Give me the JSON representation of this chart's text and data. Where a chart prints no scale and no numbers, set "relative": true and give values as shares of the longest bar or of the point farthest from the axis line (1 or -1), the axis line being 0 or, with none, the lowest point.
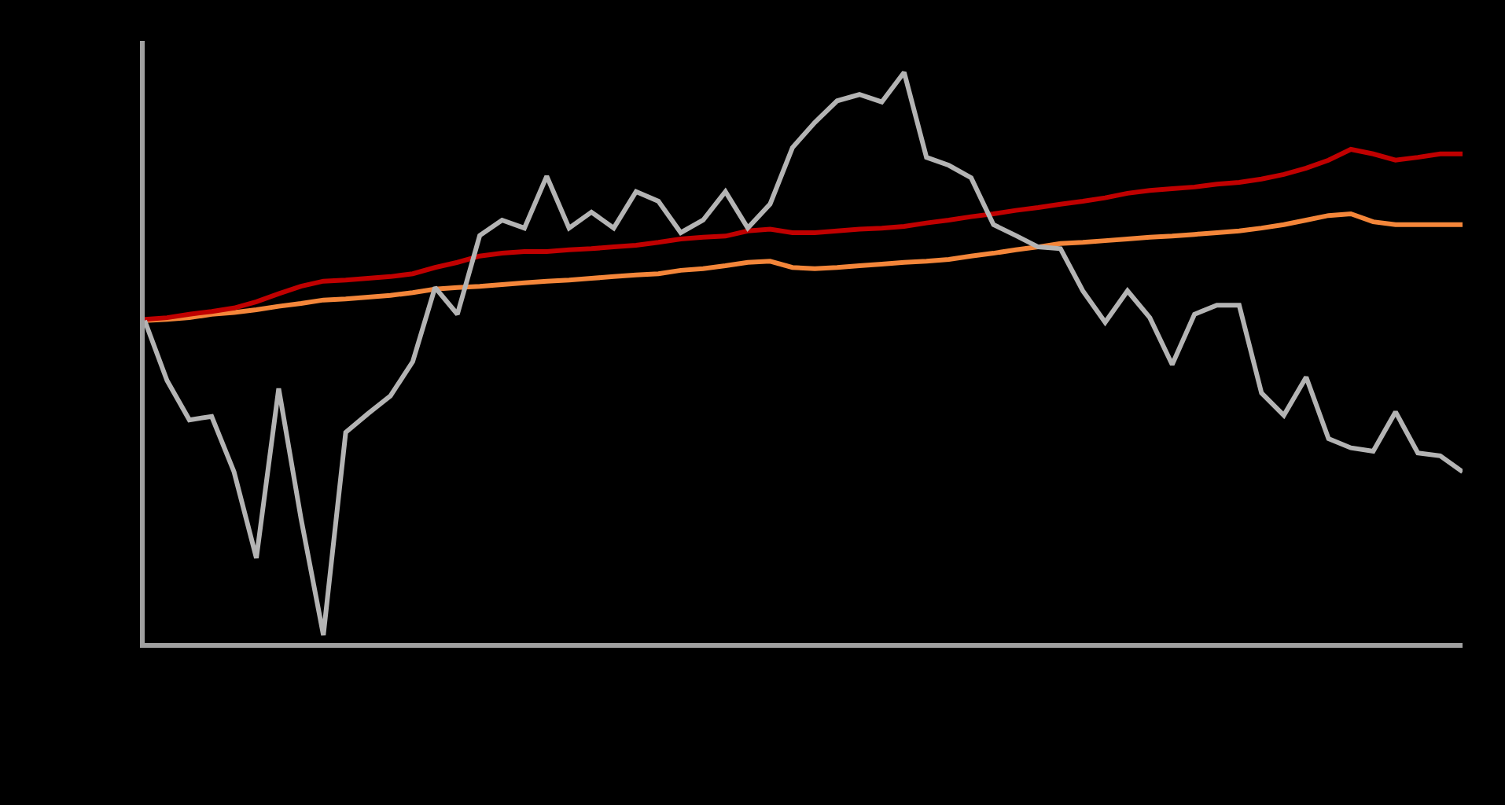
{
  "chart_data": {
    "type": "line",
    "relative": true,
    "grid": false,
    "marker": "none",
    "line_style": "solid",
    "categories": [
      null,
      null,
      null,
      null,
      null,
      null,
      null,
      null,
      null,
      null,
      null,
      null,
      null,
      null,
      null,
      null,
      null,
      null,
      null,
      null,
      null,
      null,
      null,
      null,
      null,
      null,
      null,
      null,
      null,
      null,
      null,
      null,
      null,
      null,
      null,
      null,
      null,
      null,
      null,
      null,
      null,
      null,
      null,
      null,
      null,
      null,
      null,
      null,
      null,
      null,
      null,
      null,
      null,
      null,
      null,
      null,
      null,
      null,
      null,
      null
    ],
    "series": [
      {
        "color": "#f4863a",
        "values": [
          0.565,
          0.567,
          0.57,
          0.576,
          0.579,
          0.584,
          0.59,
          0.595,
          0.601,
          0.603,
          0.606,
          0.609,
          0.614,
          0.62,
          0.623,
          0.625,
          0.628,
          0.631,
          0.634,
          0.636,
          0.639,
          0.642,
          0.645,
          0.647,
          0.653,
          0.656,
          0.661,
          0.667,
          0.669,
          0.658,
          0.656,
          0.658,
          0.661,
          0.664,
          0.667,
          0.669,
          0.672,
          0.678,
          0.683,
          0.689,
          0.694,
          0.7,
          0.702,
          0.705,
          0.708,
          0.711,
          0.713,
          0.716,
          0.719,
          0.722,
          0.727,
          0.733,
          0.741,
          0.749,
          0.752,
          0.738,
          0.733,
          0.733,
          0.733,
          0.733
        ]
      },
      {
        "color": "#c00000",
        "values": [
          0.567,
          0.57,
          0.576,
          0.581,
          0.587,
          0.598,
          0.612,
          0.625,
          0.634,
          0.636,
          0.639,
          0.642,
          0.647,
          0.658,
          0.667,
          0.678,
          0.683,
          0.686,
          0.686,
          0.689,
          0.691,
          0.694,
          0.697,
          0.702,
          0.708,
          0.711,
          0.713,
          0.722,
          0.725,
          0.719,
          0.719,
          0.722,
          0.725,
          0.727,
          0.73,
          0.736,
          0.741,
          0.747,
          0.752,
          0.758,
          0.763,
          0.769,
          0.774,
          0.78,
          0.788,
          0.793,
          0.796,
          0.799,
          0.804,
          0.807,
          0.813,
          0.821,
          0.832,
          0.846,
          0.865,
          0.857,
          0.846,
          0.851,
          0.857,
          0.857
        ]
      },
      {
        "color": "#b4b4b4",
        "values": [
          0.565,
          0.46,
          0.391,
          0.397,
          0.3,
          0.149,
          0.446,
          0.218,
          0.014,
          0.369,
          0.402,
          0.433,
          0.493,
          0.623,
          0.576,
          0.714,
          0.741,
          0.727,
          0.818,
          0.727,
          0.755,
          0.727,
          0.791,
          0.774,
          0.719,
          0.741,
          0.791,
          0.727,
          0.769,
          0.868,
          0.912,
          0.95,
          0.961,
          0.948,
          1.0,
          0.851,
          0.837,
          0.815,
          0.733,
          0.714,
          0.694,
          0.691,
          0.617,
          0.562,
          0.617,
          0.57,
          0.488,
          0.576,
          0.592,
          0.592,
          0.438,
          0.399,
          0.466,
          0.358,
          0.342,
          0.336,
          0.405,
          0.333,
          0.328,
          0.3
        ]
      }
    ]
  }
}
